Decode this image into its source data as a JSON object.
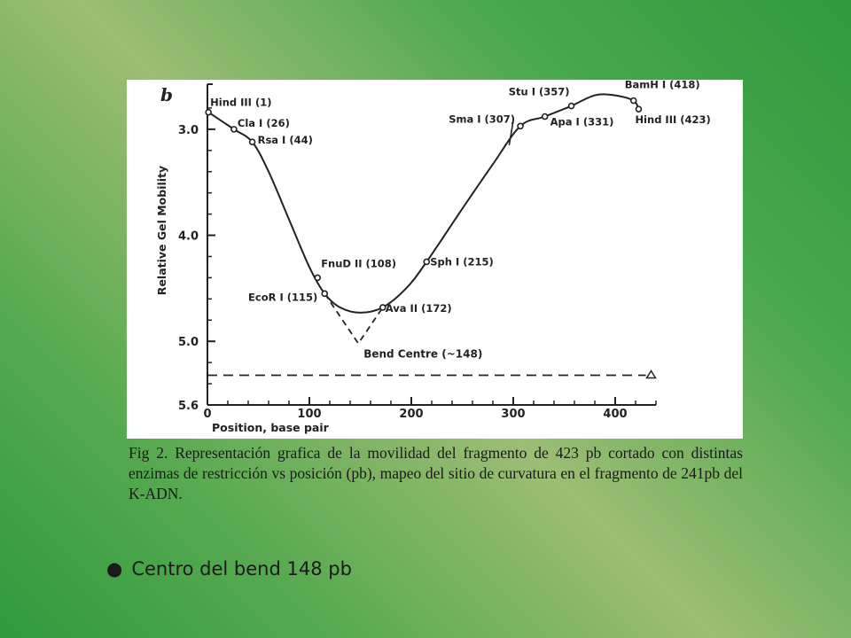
{
  "chart_data": {
    "type": "line",
    "panel_label": "b",
    "xlabel": "Position, base pair",
    "ylabel": "Relative Gel Mobility",
    "xlim": [
      0,
      440
    ],
    "ylim": [
      2.6,
      5.6
    ],
    "x_ticks": [
      0,
      100,
      200,
      300,
      400
    ],
    "y_ticks": [
      3.0,
      4.0,
      5.0,
      5.6
    ],
    "y_tick_labels": [
      "3.0",
      "4.0",
      "5.0",
      "5.6"
    ],
    "grid": false,
    "series": [
      {
        "points": [
          {
            "x": 1,
            "y": 2.84,
            "label": "Hind III (1)"
          },
          {
            "x": 26,
            "y": 3.0,
            "label": "Cla I (26)"
          },
          {
            "x": 44,
            "y": 3.12,
            "label": "Rsa I (44)"
          },
          {
            "x": 108,
            "y": 4.4,
            "label": "FnuD II (108)"
          },
          {
            "x": 115,
            "y": 4.55,
            "label": "EcoR I (115)"
          },
          {
            "x": 172,
            "y": 4.68,
            "label": "Ava II (172)"
          },
          {
            "x": 215,
            "y": 4.25,
            "label": "Sph I (215)"
          },
          {
            "x": 307,
            "y": 2.97,
            "label": "Sma I (307)"
          },
          {
            "x": 331,
            "y": 2.88,
            "label": "Apa I (331)"
          },
          {
            "x": 357,
            "y": 2.78,
            "label": "Stu I (357)"
          },
          {
            "x": 418,
            "y": 2.73,
            "label": "BamH I (418)"
          },
          {
            "x": 423,
            "y": 2.81,
            "label": "Hind III (423)"
          }
        ]
      }
    ],
    "smooth_curve": [
      [
        1,
        2.84
      ],
      [
        26,
        3.0
      ],
      [
        44,
        3.12
      ],
      [
        60,
        3.4
      ],
      [
        80,
        3.85
      ],
      [
        100,
        4.3
      ],
      [
        115,
        4.55
      ],
      [
        130,
        4.68
      ],
      [
        150,
        4.73
      ],
      [
        172,
        4.68
      ],
      [
        195,
        4.5
      ],
      [
        215,
        4.25
      ],
      [
        250,
        3.75
      ],
      [
        280,
        3.33
      ],
      [
        307,
        2.97
      ],
      [
        331,
        2.88
      ],
      [
        357,
        2.78
      ],
      [
        380,
        2.68
      ],
      [
        400,
        2.68
      ],
      [
        418,
        2.73
      ],
      [
        423,
        2.81
      ]
    ],
    "bend_lines": [
      [
        [
          115,
          4.55
        ],
        [
          148,
          5.02
        ],
        [
          172,
          4.68
        ]
      ]
    ],
    "bend_annotation": "Bend Centre (~148)",
    "baseline_y": 5.32,
    "baseline_x_end": 430
  },
  "caption": "Fig 2. Representación grafica de la movilidad del fragmento de 423 pb cortado con distintas enzimas de restricción   vs posición (pb), mapeo del sitio de curvatura en el fragmento  de 241pb del K-ADN.",
  "bullet": {
    "marker": "●",
    "text": "Centro del bend 148 pb"
  },
  "colors": {
    "background_green": "#2f9a3c",
    "background_light": "#9dbd74",
    "ink": "#222222"
  }
}
